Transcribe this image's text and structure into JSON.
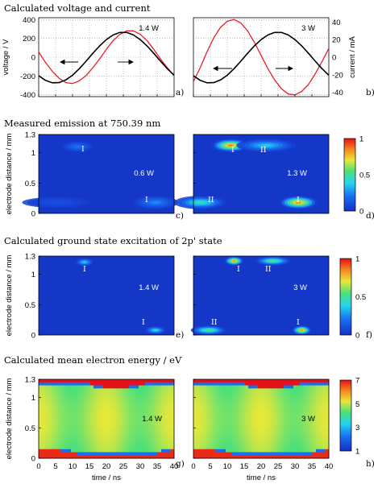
{
  "sections": {
    "a": "Calculated voltage and current",
    "b": "Measured emission at 750.39 nm",
    "c": "Calculated ground state excitation of 2p' state",
    "d": "Calculated mean electron energy / eV"
  },
  "axis_labels": {
    "voltage": "voltage / V",
    "current": "current / mA",
    "distance": "electrode distance / mm",
    "time": "time / ns"
  },
  "colors": {
    "voltage": "#000000",
    "current": "#e8202a",
    "map_bg": "#1537c8"
  },
  "chart_data": [
    {
      "type": "line",
      "panel": "a)",
      "power": "1.4 W",
      "x": [
        0,
        2,
        4,
        6,
        8,
        10,
        12,
        14,
        16,
        18,
        20,
        22,
        24,
        26,
        28,
        30,
        32,
        34,
        36,
        38,
        40
      ],
      "series": [
        {
          "name": "voltage / V",
          "values": [
            -197,
            -247,
            -273,
            -271,
            -243,
            -192,
            -123,
            -43,
            41,
            120,
            187,
            237,
            263,
            263,
            237,
            187,
            120,
            41,
            -43,
            -123,
            -192
          ]
        },
        {
          "name": "current / mA",
          "values": [
            6,
            -6,
            -16,
            -24,
            -29,
            -30,
            -27,
            -21,
            -12,
            -2,
            9,
            19,
            26,
            30,
            30,
            26,
            19,
            9,
            -2,
            -12,
            -21
          ]
        }
      ],
      "ylim_left": [
        -420,
        420
      ],
      "ylim_right": [
        -45,
        45
      ],
      "yticks_left": [
        "400",
        "200",
        "0",
        "-200",
        "-400"
      ]
    },
    {
      "type": "line",
      "panel": "b)",
      "power": "3 W",
      "x": [
        0,
        2,
        4,
        6,
        8,
        10,
        12,
        14,
        16,
        18,
        20,
        22,
        24,
        26,
        28,
        30,
        32,
        34,
        36,
        38,
        40
      ],
      "series": [
        {
          "name": "voltage / V",
          "values": [
            -197,
            -247,
            -273,
            -271,
            -243,
            -192,
            -123,
            -43,
            41,
            120,
            187,
            237,
            263,
            263,
            237,
            187,
            120,
            41,
            -43,
            -123,
            -192
          ]
        },
        {
          "name": "current / mA",
          "values": [
            -28,
            -12,
            6,
            22,
            34,
            41,
            43,
            39,
            30,
            17,
            2,
            -13,
            -26,
            -36,
            -42,
            -43,
            -39,
            -31,
            -19,
            -5,
            10
          ]
        }
      ],
      "ylim_right": [
        -45,
        45
      ],
      "yticks_right": [
        "40",
        "20",
        "0",
        "-20",
        "-40"
      ]
    },
    {
      "type": "heatmap",
      "panel": "c)",
      "power": "0.6 W",
      "annotations": [
        "I",
        "I"
      ],
      "xlim": [
        0,
        40
      ],
      "ylim": [
        0,
        1.3
      ],
      "blobs": [
        {
          "t": 11.5,
          "d": 1.1,
          "st": 2.0,
          "sd": 0.04,
          "v": 0.25
        },
        {
          "t": 34.5,
          "d": 0.18,
          "st": 3.0,
          "sd": 0.05,
          "v": 0.3
        },
        {
          "t": 5,
          "d": 0.18,
          "st": 4.5,
          "sd": 0.04,
          "v": 0.12
        }
      ]
    },
    {
      "type": "heatmap",
      "panel": "d)",
      "power": "1.3 W",
      "annotations": [
        "II",
        "II",
        "I",
        "I"
      ],
      "xlim": [
        0,
        40
      ],
      "ylim": [
        0,
        1.3
      ],
      "blobs": [
        {
          "t": 11,
          "d": 1.12,
          "st": 2.6,
          "sd": 0.05,
          "v": 1.0
        },
        {
          "t": 21.5,
          "d": 1.12,
          "st": 4.0,
          "sd": 0.05,
          "v": 0.45
        },
        {
          "t": 31,
          "d": 0.18,
          "st": 2.6,
          "sd": 0.05,
          "v": 1.0
        },
        {
          "t": 2,
          "d": 0.18,
          "st": 3.5,
          "sd": 0.05,
          "v": 0.55
        }
      ],
      "colorbar": {
        "ticks": [
          "1",
          "0.5",
          "0"
        ],
        "range": [
          0,
          1
        ]
      }
    },
    {
      "type": "heatmap",
      "panel": "e)",
      "power": "1.4 W",
      "annotations": [
        "I",
        "I"
      ],
      "xlim": [
        0,
        40
      ],
      "ylim": [
        0,
        1.3
      ],
      "blobs": [
        {
          "t": 13.5,
          "d": 1.2,
          "st": 1.2,
          "sd": 0.03,
          "v": 0.45
        },
        {
          "t": 34.5,
          "d": 0.08,
          "st": 1.4,
          "sd": 0.03,
          "v": 0.5
        }
      ]
    },
    {
      "type": "heatmap",
      "panel": "f)",
      "power": "3 W",
      "annotations": [
        "I",
        "II",
        "II",
        "I"
      ],
      "xlim": [
        0,
        40
      ],
      "ylim": [
        0,
        1.3
      ],
      "blobs": [
        {
          "t": 12,
          "d": 1.22,
          "st": 1.3,
          "sd": 0.035,
          "v": 1.0
        },
        {
          "t": 23.5,
          "d": 1.22,
          "st": 2.4,
          "sd": 0.035,
          "v": 0.65
        },
        {
          "t": 32,
          "d": 0.08,
          "st": 1.3,
          "sd": 0.035,
          "v": 1.0
        },
        {
          "t": 4.5,
          "d": 0.08,
          "st": 2.4,
          "sd": 0.035,
          "v": 0.65
        }
      ],
      "colorbar": {
        "ticks": [
          "1",
          "0.5",
          "0"
        ],
        "range": [
          0,
          1
        ]
      }
    },
    {
      "type": "heatmap",
      "panel": "g)",
      "power": "1.4 W",
      "xlim": [
        0,
        40
      ],
      "ylim": [
        0,
        1.3
      ],
      "colorbar_range": [
        1,
        7
      ]
    },
    {
      "type": "heatmap",
      "panel": "h)",
      "power": "3 W",
      "xlim": [
        0,
        40
      ],
      "ylim": [
        0,
        1.3
      ],
      "colorbar": {
        "ticks": [
          "7",
          "5",
          "3",
          "1"
        ],
        "range": [
          1,
          7
        ]
      }
    }
  ],
  "xticks": [
    "0",
    "5",
    "10",
    "15",
    "20",
    "25",
    "30",
    "35",
    "40"
  ],
  "dist_ticks": [
    "1.3",
    "1",
    "0.5",
    "0"
  ],
  "voltage_ticks": [
    "400",
    "200",
    "0",
    "-200",
    "-400"
  ],
  "current_ticks": [
    "40",
    "20",
    "0",
    "-20",
    "-40"
  ]
}
